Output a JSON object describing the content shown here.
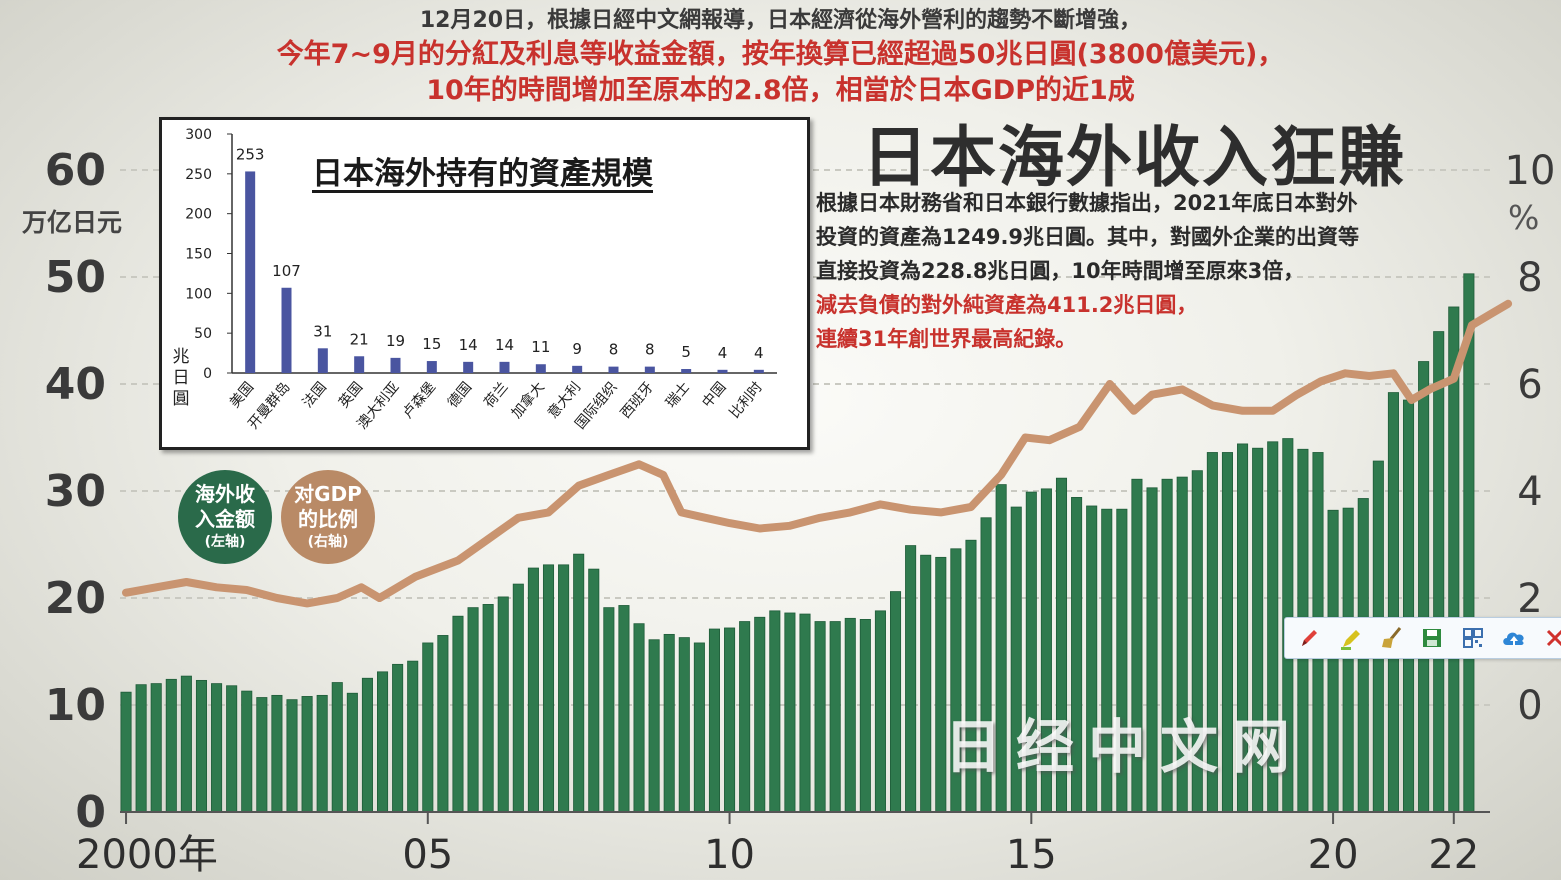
{
  "headlines": {
    "line1": "12月20日，根據日經中文網報導，日本經濟從海外營利的趨勢不斷增強，",
    "line2": "今年7~9月的分紅及利息等收益金額，按年換算已經超過50兆日圓(3800億美元)，",
    "line3": "10年的時間增加至原本的2.8倍，相當於日本GDP的近1成"
  },
  "main_title": "日本海外收入狂賺",
  "description": {
    "line1": "根據日本財務省和日本銀行數據指出，2021年底日本對外",
    "line2": "投資的資產為1249.9兆日圓。其中，對國外企業的出資等",
    "line3": "直接投資為228.8兆日圓，10年時間增至原來3倍，",
    "line4": "減去負債的對外純資產為411.2兆日圓，",
    "line5": "連續31年創世界最高紀錄。"
  },
  "legend": {
    "income": {
      "line1": "海外收",
      "line2": "入金额",
      "line3": "(左轴)",
      "color": "#2a6a4a"
    },
    "gdp": {
      "line1": "对GDP",
      "line2": "的比例",
      "line3": "(右轴)",
      "color": "#b98a66"
    }
  },
  "watermark": "日经中文网",
  "colors": {
    "bar": "#2f7a4e",
    "bar_edge": "#1f5c39",
    "line": "#c99470",
    "inset_bar": "#4a55a0",
    "red_text": "#c8322d"
  },
  "toolbar": {
    "items": [
      {
        "name": "pen-icon",
        "color": "#e0403a"
      },
      {
        "name": "highlighter-icon",
        "color": "#d7c21e"
      },
      {
        "name": "broom-icon",
        "color": "#c9a33a"
      },
      {
        "name": "save-icon",
        "color": "#2e8a3e"
      },
      {
        "name": "qr-code-icon",
        "color": "#3c6fae"
      },
      {
        "name": "cloud-upload-icon",
        "color": "#2f86d6"
      },
      {
        "name": "close-icon",
        "color": "#d0312d"
      }
    ]
  },
  "chart_data": [
    {
      "type": "bar+line",
      "title": "",
      "x_tick_labels": [
        "2000年",
        "05",
        "10",
        "15",
        "20",
        "22"
      ],
      "x_ticks": [
        2000,
        2005,
        2010,
        2015,
        2020,
        2022
      ],
      "xlim": [
        1999.9,
        2022.6
      ],
      "ylabel_left": "万亿日元",
      "ylabel_right": "%",
      "ylim_left": [
        0,
        60
      ],
      "ylim_right": [
        -2,
        10
      ],
      "yticks_left": [
        0,
        10,
        20,
        30,
        40,
        50,
        60
      ],
      "yticks_right": [
        0,
        2,
        4,
        6,
        8,
        10
      ],
      "grid": "horizontal dashed",
      "series": [
        {
          "name": "海外收入金额",
          "type": "bar",
          "axis": "left",
          "x_start": 2000.0,
          "x_step": 0.25,
          "values": [
            11.2,
            11.9,
            12.0,
            12.4,
            12.7,
            12.3,
            12.0,
            11.8,
            11.3,
            10.7,
            10.9,
            10.5,
            10.8,
            10.9,
            12.1,
            11.1,
            12.5,
            13.1,
            13.8,
            14.1,
            15.8,
            16.5,
            18.3,
            19.1,
            19.4,
            20.1,
            21.3,
            22.8,
            23.1,
            23.1,
            24.1,
            22.7,
            19.1,
            19.3,
            17.6,
            16.1,
            16.6,
            16.3,
            15.8,
            17.1,
            17.2,
            17.8,
            18.2,
            18.8,
            18.6,
            18.5,
            17.8,
            17.8,
            18.1,
            18.0,
            18.8,
            20.6,
            24.9,
            24.0,
            23.8,
            24.6,
            25.4,
            27.5,
            30.6,
            28.5,
            29.9,
            30.2,
            31.2,
            29.4,
            28.6,
            28.3,
            28.3,
            31.1,
            30.3,
            31.1,
            31.3,
            31.9,
            33.6,
            33.6,
            34.4,
            34.0,
            34.6,
            34.9,
            33.9,
            33.6,
            28.2,
            28.4,
            29.3,
            32.8,
            39.2,
            38.5,
            42.1,
            44.9,
            47.2,
            50.3
          ]
        },
        {
          "name": "对GDP的比例",
          "type": "line",
          "axis": "right",
          "points": [
            [
              2000.0,
              2.1
            ],
            [
              2000.5,
              2.2
            ],
            [
              2001.0,
              2.3
            ],
            [
              2001.5,
              2.2
            ],
            [
              2002.0,
              2.15
            ],
            [
              2002.5,
              2.0
            ],
            [
              2003.0,
              1.9
            ],
            [
              2003.5,
              2.0
            ],
            [
              2003.9,
              2.2
            ],
            [
              2004.2,
              2.0
            ],
            [
              2004.8,
              2.4
            ],
            [
              2005.5,
              2.7
            ],
            [
              2006.0,
              3.1
            ],
            [
              2006.5,
              3.5
            ],
            [
              2007.0,
              3.6
            ],
            [
              2007.5,
              4.1
            ],
            [
              2008.0,
              4.3
            ],
            [
              2008.5,
              4.5
            ],
            [
              2008.9,
              4.3
            ],
            [
              2009.2,
              3.6
            ],
            [
              2009.6,
              3.5
            ],
            [
              2010.0,
              3.4
            ],
            [
              2010.5,
              3.3
            ],
            [
              2011.0,
              3.35
            ],
            [
              2011.5,
              3.5
            ],
            [
              2012.0,
              3.6
            ],
            [
              2012.5,
              3.75
            ],
            [
              2013.0,
              3.65
            ],
            [
              2013.5,
              3.6
            ],
            [
              2014.0,
              3.7
            ],
            [
              2014.5,
              4.3
            ],
            [
              2014.9,
              5.0
            ],
            [
              2015.3,
              4.95
            ],
            [
              2015.8,
              5.2
            ],
            [
              2016.3,
              6.0
            ],
            [
              2016.7,
              5.5
            ],
            [
              2017.0,
              5.8
            ],
            [
              2017.5,
              5.9
            ],
            [
              2018.0,
              5.6
            ],
            [
              2018.5,
              5.5
            ],
            [
              2019.0,
              5.5
            ],
            [
              2019.4,
              5.8
            ],
            [
              2019.8,
              6.05
            ],
            [
              2020.2,
              6.2
            ],
            [
              2020.6,
              6.15
            ],
            [
              2021.0,
              6.2
            ],
            [
              2021.3,
              5.7
            ],
            [
              2021.6,
              5.9
            ],
            [
              2022.0,
              6.1
            ],
            [
              2022.3,
              7.1
            ],
            [
              2022.6,
              7.3
            ],
            [
              2022.9,
              7.5
            ]
          ]
        }
      ]
    },
    {
      "type": "bar",
      "title": "日本海外持有的資產規模",
      "ylabel": "兆日圓",
      "ylim": [
        0,
        300
      ],
      "yticks": [
        0,
        50,
        100,
        150,
        200,
        250,
        300
      ],
      "categories": [
        "美国",
        "开曼群岛",
        "法国",
        "英国",
        "澳大利亚",
        "卢森堡",
        "德国",
        "荷兰",
        "加拿大",
        "意大利",
        "国际组织",
        "西班牙",
        "瑞士",
        "中国",
        "比利时"
      ],
      "values": [
        253,
        107,
        31,
        21,
        19,
        15,
        14,
        14,
        11,
        9,
        8,
        8,
        5,
        4,
        4
      ],
      "value_labels": [
        "253",
        "107",
        "31",
        "21",
        "19",
        "15",
        "14",
        "14",
        "11",
        "9",
        "8",
        "8",
        "5",
        "4",
        "4"
      ]
    }
  ]
}
